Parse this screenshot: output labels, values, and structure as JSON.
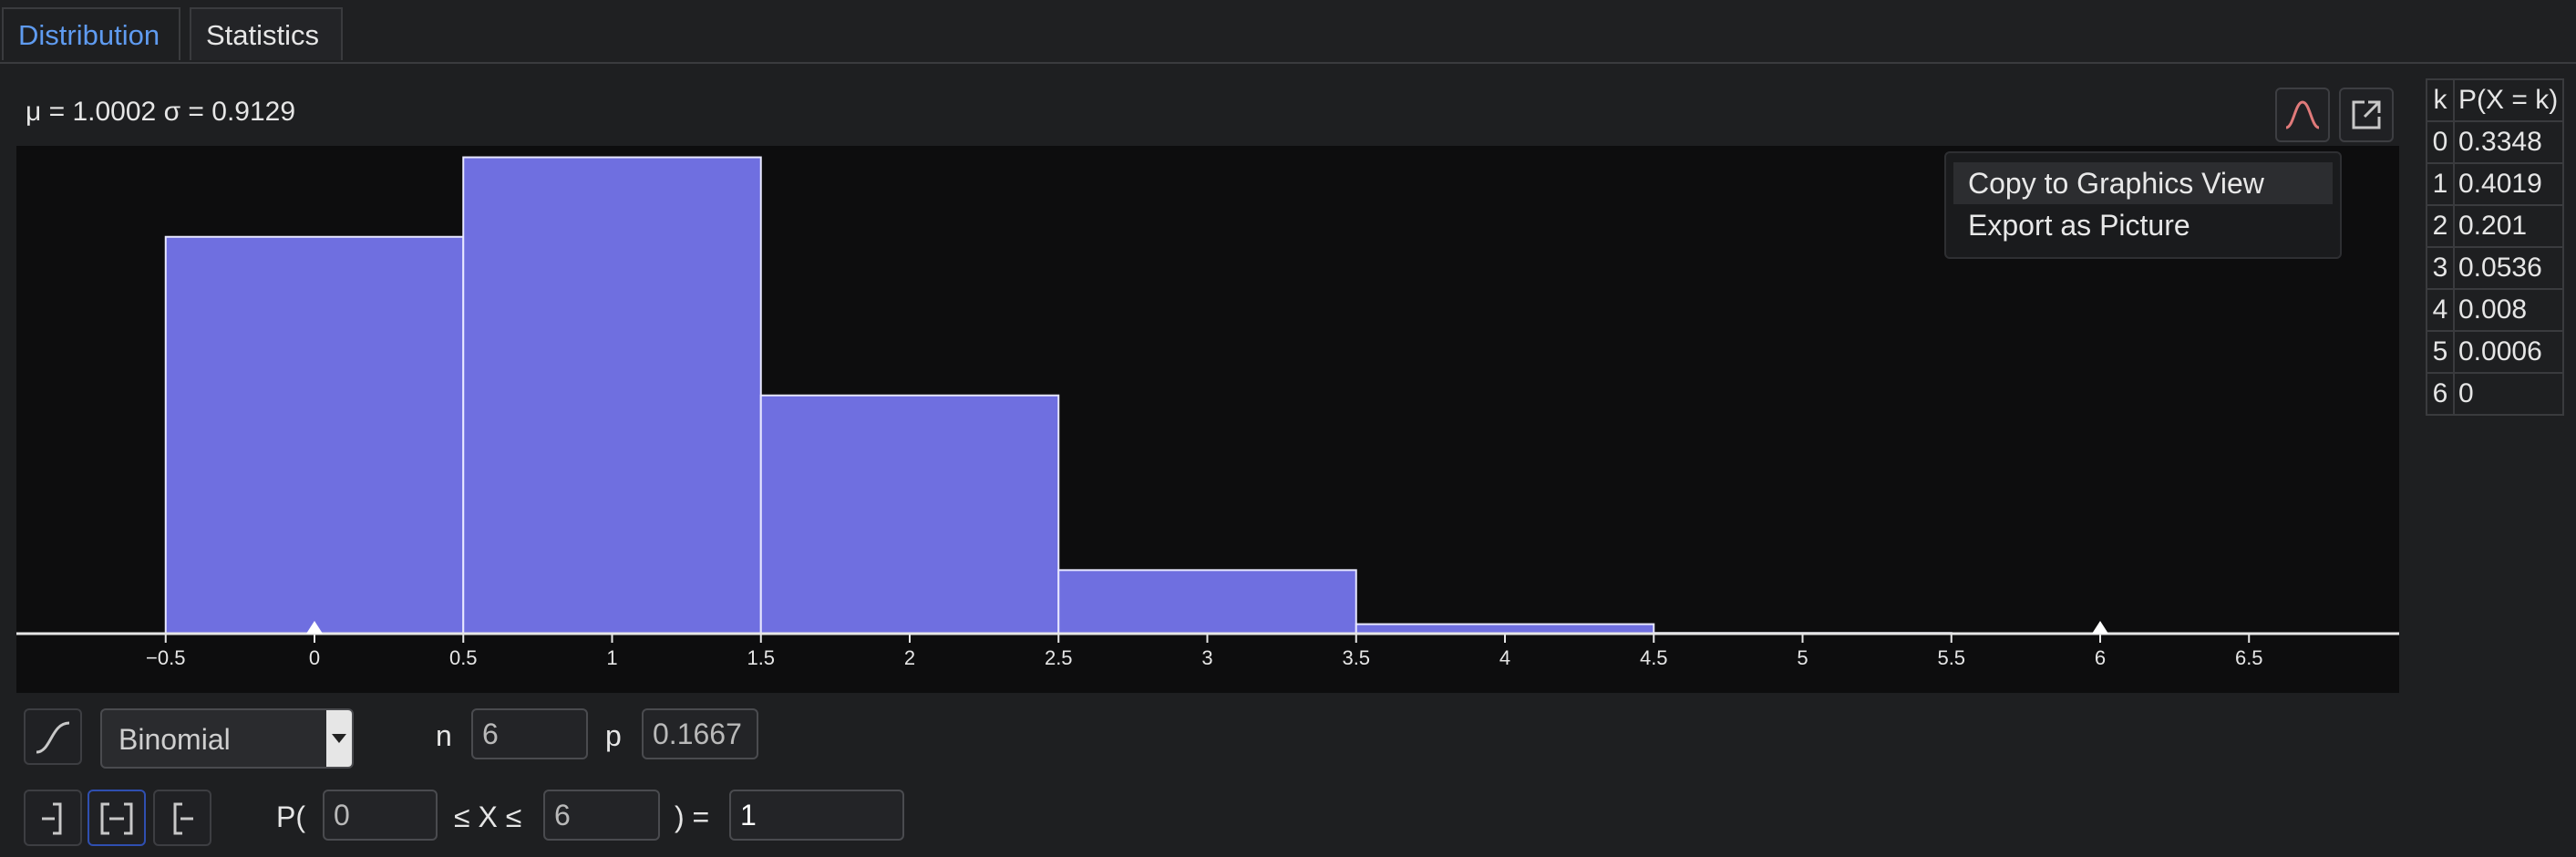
{
  "tabs": [
    {
      "label": "Distribution",
      "active": true
    },
    {
      "label": "Statistics",
      "active": false
    }
  ],
  "stats_line": "μ = 1.0002 σ = 0.9129",
  "plot_toolbar": {
    "curve_icon": "bell-curve-icon",
    "export_icon": "export-icon"
  },
  "context_menu": {
    "items": [
      "Copy to Graphics View",
      "Export as Picture"
    ],
    "hovered_index": 0
  },
  "table": {
    "headers": [
      "k",
      "P(X = k)"
    ],
    "rows": [
      [
        "0",
        "0.3348"
      ],
      [
        "1",
        "0.4019"
      ],
      [
        "2",
        "0.201"
      ],
      [
        "3",
        "0.0536"
      ],
      [
        "4",
        "0.008"
      ],
      [
        "5",
        "0.0006"
      ],
      [
        "6",
        "0"
      ]
    ]
  },
  "chart_data": {
    "type": "bar",
    "categories": [
      0,
      1,
      2,
      3,
      4,
      5,
      6
    ],
    "values": [
      0.3348,
      0.4019,
      0.201,
      0.0536,
      0.008,
      0.0006,
      0
    ],
    "xlim": [
      -1,
      7
    ],
    "ylim": [
      0,
      0.48
    ],
    "x_ticks": [
      "−0.5",
      "0",
      "0.5",
      "1",
      "1.5",
      "2",
      "2.5",
      "3",
      "3.5",
      "4",
      "4.5",
      "5",
      "5.5",
      "6",
      "6.5"
    ],
    "x_tick_values": [
      -0.5,
      0,
      0.5,
      1,
      1.5,
      2,
      2.5,
      3,
      3.5,
      4,
      4.5,
      5,
      5.5,
      6,
      6.5
    ],
    "interval_markers": [
      0,
      6
    ],
    "bar_color": "#6f6fe0",
    "bar_border_color": "#e8e8ff",
    "background": "#0d0d0e",
    "grid": false
  },
  "controls": {
    "cumulative_icon": "cumulative-curve-icon",
    "distribution_label": "Binomial",
    "param1_label": "n",
    "param1_value": "6",
    "param2_label": "p",
    "param2_value": "0.1667",
    "interval_buttons": [
      "left-sided-icon",
      "interval-icon",
      "right-sided-icon"
    ],
    "selected_interval": 1,
    "prob_prefix": "P(",
    "lower_value": "0",
    "middle_text": "≤ X ≤",
    "upper_value": "6",
    "equals_text": ") =",
    "result_value": "1"
  },
  "accent_color": "#5f9bf0"
}
